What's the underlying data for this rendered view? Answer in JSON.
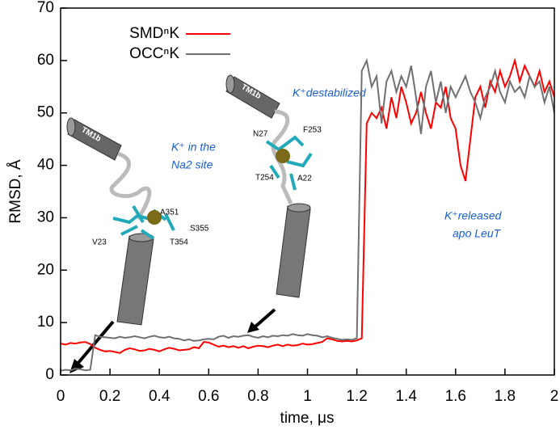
{
  "chart_data": {
    "type": "line",
    "xlabel": "time, μs",
    "ylabel": "RMSD, Å",
    "xlim": [
      0,
      2
    ],
    "xticks": [
      0,
      0.2,
      0.4,
      0.6,
      0.8,
      1,
      1.2,
      1.4,
      1.6,
      1.8,
      2
    ],
    "ylim": [
      0,
      70
    ],
    "yticks": [
      0,
      10,
      20,
      30,
      40,
      50,
      60,
      70
    ],
    "legend": "upper left",
    "x": [
      0,
      0.02,
      0.04,
      0.06,
      0.08,
      0.1,
      0.12,
      0.14,
      0.16,
      0.18,
      0.2,
      0.22,
      0.24,
      0.26,
      0.28,
      0.3,
      0.32,
      0.34,
      0.36,
      0.38,
      0.4,
      0.42,
      0.44,
      0.46,
      0.48,
      0.5,
      0.52,
      0.54,
      0.56,
      0.58,
      0.6,
      0.62,
      0.64,
      0.66,
      0.68,
      0.7,
      0.72,
      0.74,
      0.76,
      0.78,
      0.8,
      0.82,
      0.84,
      0.86,
      0.88,
      0.9,
      0.92,
      0.94,
      0.96,
      0.98,
      1,
      1.02,
      1.04,
      1.06,
      1.08,
      1.1,
      1.12,
      1.14,
      1.16,
      1.18,
      1.2,
      1.22,
      1.24,
      1.26,
      1.28,
      1.3,
      1.32,
      1.34,
      1.36,
      1.38,
      1.4,
      1.42,
      1.44,
      1.46,
      1.48,
      1.5,
      1.52,
      1.54,
      1.56,
      1.58,
      1.6,
      1.62,
      1.64,
      1.66,
      1.68,
      1.7,
      1.72,
      1.74,
      1.76,
      1.78,
      1.8,
      1.82,
      1.84,
      1.86,
      1.88,
      1.9,
      1.92,
      1.94,
      1.96,
      1.98,
      2
    ],
    "series": [
      {
        "name": "SMDⁿK",
        "color": "#ff0000",
        "values": [
          6,
          5.8,
          6.1,
          6,
          6.2,
          6.3,
          5.9,
          5.2,
          4.8,
          4.5,
          4.6,
          4.4,
          4.2,
          4.8,
          5.1,
          4.9,
          4.6,
          4.7,
          5,
          4.8,
          4.5,
          4.9,
          5.2,
          5,
          4.7,
          4.8,
          4.9,
          5.3,
          5.1,
          6.3,
          6.2,
          5.8,
          5.4,
          5.6,
          5.3,
          5.5,
          5.2,
          5.5,
          5.1,
          5.4,
          5.6,
          5.5,
          5.3,
          5.6,
          5.8,
          5.5,
          5.8,
          5.6,
          5.7,
          6,
          5.8,
          5.9,
          6.1,
          6.3,
          7,
          6.8,
          6.5,
          6.4,
          6.5,
          6.4,
          6.6,
          7,
          48,
          50,
          49,
          51,
          47,
          53,
          49,
          55,
          52,
          48,
          50,
          54,
          50,
          47,
          52,
          51,
          55,
          49,
          47,
          40,
          37,
          45,
          53,
          55,
          51,
          56,
          54,
          58,
          55,
          57,
          60,
          56,
          59,
          57,
          55,
          58,
          54,
          56,
          53
        ]
      },
      {
        "name": "OCCⁿK",
        "color": "#707070",
        "values": [
          0.8,
          1,
          0.9,
          1.2,
          1.1,
          0.9,
          1,
          7.6,
          7.3,
          7.2,
          7.1,
          7,
          7.3,
          7.1,
          7.2,
          7.4,
          7.2,
          7,
          7.3,
          7.5,
          7.2,
          7.1,
          7.3,
          7,
          6.9,
          6.6,
          6.8,
          6.5,
          6.6,
          6.8,
          6.9,
          6.8,
          7.3,
          7.5,
          7.1,
          7.4,
          7.3,
          7.5,
          7.6,
          7.3,
          7.1,
          7.4,
          7.2,
          7.5,
          7.4,
          7.6,
          7.5,
          7.8,
          7.6,
          7.5,
          7.8,
          7.6,
          7.5,
          7.2,
          7.4,
          7.1,
          6.9,
          6.7,
          6.8,
          6.7,
          7,
          58,
          60,
          55,
          57,
          48,
          56,
          58,
          54,
          57,
          55,
          59,
          53,
          46,
          55,
          58,
          52,
          56,
          50,
          55,
          53,
          55,
          57,
          54,
          52,
          49,
          53,
          55,
          58,
          54,
          52,
          56,
          54,
          55,
          53,
          57,
          55,
          56,
          52,
          55,
          50
        ]
      }
    ],
    "annotations": [
      "K⁺ in the",
      "Na2 site",
      "K⁺destabilized",
      "K⁺released",
      "apo LeuT"
    ],
    "inset_labels": [
      "TM1b",
      "V23",
      "A351",
      "S355",
      "T354",
      "TM1b",
      "N27",
      "F253",
      "T254",
      "A22"
    ]
  }
}
